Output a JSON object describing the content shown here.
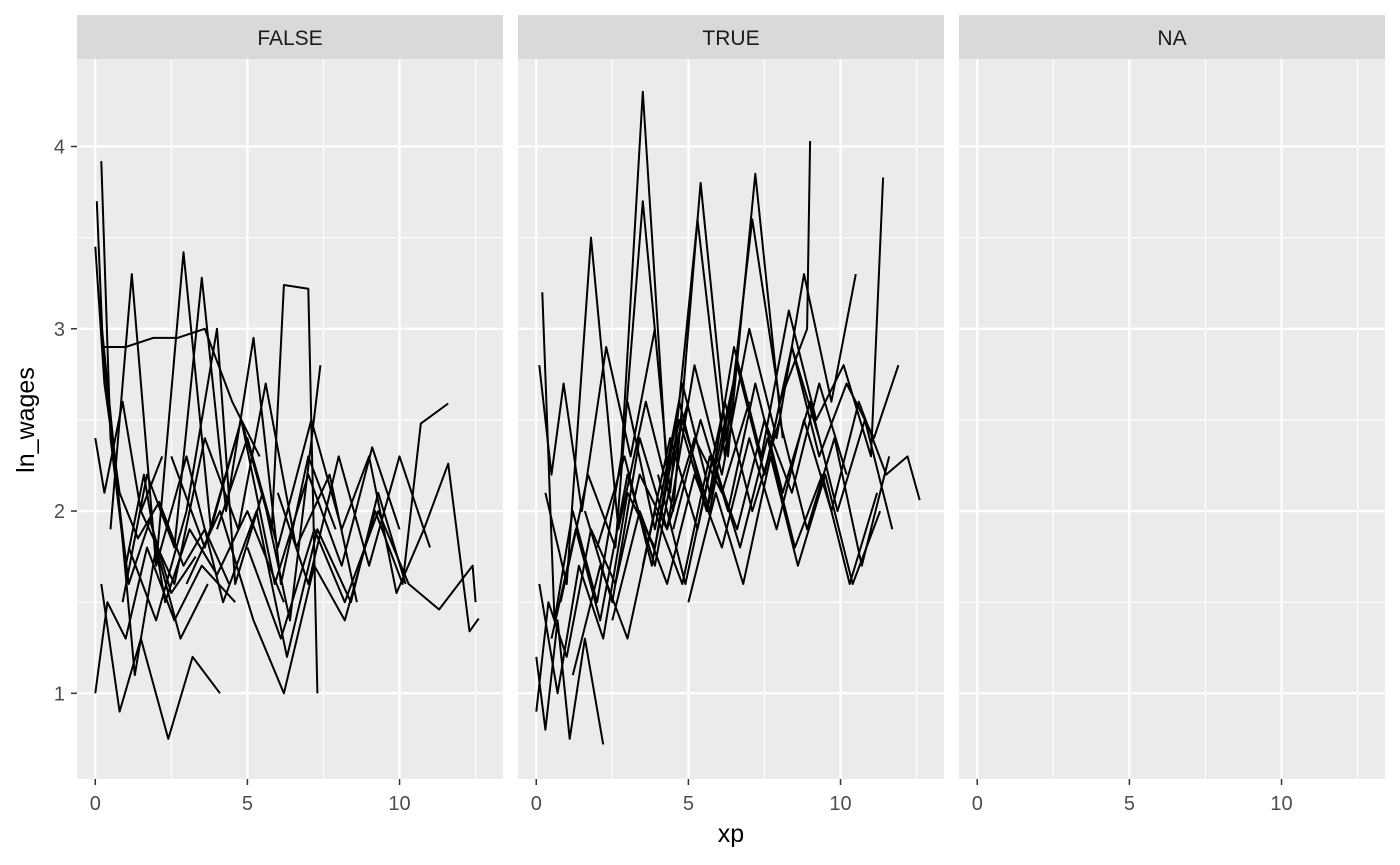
{
  "chart_data": {
    "type": "line",
    "facet_variable_values": [
      "FALSE",
      "TRUE",
      "NA"
    ],
    "xlabel": "xp",
    "ylabel": "ln_wages",
    "xlim": [
      -0.6,
      13.4
    ],
    "ylim": [
      0.53,
      4.48
    ],
    "x_ticks": [
      0,
      5,
      10
    ],
    "y_ticks": [
      1,
      2,
      3,
      4
    ],
    "x_minor_ticks": [
      2.5,
      7.5,
      12.5
    ],
    "y_minor_ticks": [
      1.5,
      2.5,
      3.5
    ],
    "grid": true,
    "line_color": "#000000",
    "panel_background": "#ebebeb",
    "strip_background": "#d9d9d9",
    "panels": [
      {
        "label": "FALSE",
        "series": [
          {
            "x": [
              0.0,
              0.3,
              0.8,
              1.4,
              2.1,
              2.9,
              3.6,
              4.4
            ],
            "y": [
              3.45,
              2.7,
              2.1,
              1.85,
              2.05,
              1.7,
              1.9,
              1.6
            ]
          },
          {
            "x": [
              0.05,
              0.25,
              0.6,
              1.1,
              1.8,
              2.5,
              3.3
            ],
            "y": [
              3.7,
              2.9,
              2.3,
              1.6,
              1.95,
              1.55,
              1.75
            ]
          },
          {
            "x": [
              0.2,
              0.5,
              1.0,
              1.6,
              2.3,
              3.1,
              4.0,
              5.0,
              6.2
            ],
            "y": [
              3.92,
              2.4,
              1.7,
              2.2,
              1.5,
              1.9,
              1.65,
              2.0,
              1.5
            ]
          },
          {
            "x": [
              0.0,
              0.4,
              1.0,
              1.7,
              2.6,
              3.5,
              4.6
            ],
            "y": [
              1.0,
              1.5,
              1.3,
              1.8,
              1.4,
              1.7,
              1.5
            ]
          },
          {
            "x": [
              0.1,
              0.7,
              1.3,
              2.0,
              2.8,
              3.7
            ],
            "y": [
              3.2,
              2.2,
              1.1,
              1.8,
              1.3,
              1.6
            ]
          },
          {
            "x": [
              0.0,
              0.3,
              0.9,
              1.5,
              2.2
            ],
            "y": [
              2.4,
              2.1,
              2.6,
              2.0,
              2.3
            ]
          },
          {
            "x": [
              0.3,
              1.0,
              1.9,
              2.7,
              3.6,
              4.5,
              5.4
            ],
            "y": [
              2.9,
              2.9,
              2.95,
              2.95,
              3.0,
              2.6,
              2.3
            ]
          },
          {
            "x": [
              0.2,
              0.8,
              1.5,
              2.4,
              3.2,
              4.1
            ],
            "y": [
              1.6,
              0.9,
              1.3,
              0.75,
              1.2,
              1.0
            ]
          },
          {
            "x": [
              0.5,
              1.2,
              2.0,
              2.9,
              3.8,
              4.8,
              5.8,
              6.2,
              7.0,
              7.3
            ],
            "y": [
              1.9,
              3.3,
              1.7,
              3.42,
              1.9,
              2.5,
              1.9,
              3.24,
              3.22,
              1.0
            ]
          },
          {
            "x": [
              0.9,
              1.7,
              2.6,
              3.5,
              4.3,
              5.2,
              6.1,
              7.0,
              7.9
            ],
            "y": [
              1.5,
              2.2,
              1.8,
              3.28,
              2.0,
              2.95,
              1.6,
              2.3,
              1.9
            ]
          },
          {
            "x": [
              1.1,
              2.0,
              3.0,
              4.0,
              4.6,
              5.5,
              6.4,
              7.4
            ],
            "y": [
              1.8,
              1.4,
              2.0,
              3.0,
              1.6,
              2.1,
              1.4,
              2.8
            ]
          },
          {
            "x": [
              1.5,
              2.6,
              3.6,
              4.7,
              5.6,
              6.6,
              7.7,
              8.6
            ],
            "y": [
              2.0,
              1.6,
              2.4,
              1.9,
              2.7,
              1.8,
              2.2,
              1.5
            ]
          },
          {
            "x": [
              2.0,
              3.0,
              4.2,
              5.3,
              6.3,
              7.3,
              8.4,
              9.3,
              10.2
            ],
            "y": [
              1.7,
              2.3,
              1.5,
              2.0,
              1.2,
              1.9,
              1.5,
              2.1,
              1.6
            ]
          },
          {
            "x": [
              2.5,
              3.6,
              4.8,
              5.9,
              7.0,
              8.1,
              9.1,
              10.0
            ],
            "y": [
              2.3,
              1.8,
              2.5,
              1.6,
              2.2,
              1.7,
              2.35,
              1.9
            ]
          },
          {
            "x": [
              3.0,
              4.1,
              5.2,
              6.2,
              7.2,
              8.2,
              9.2,
              10.1,
              10.7,
              11.6
            ],
            "y": [
              1.6,
              2.0,
              1.4,
              1.0,
              1.7,
              1.4,
              2.0,
              1.6,
              2.48,
              2.59
            ]
          },
          {
            "x": [
              4.0,
              5.0,
              6.0,
              7.1,
              8.1,
              9.0,
              9.9,
              10.8,
              11.6,
              12.3,
              12.6
            ],
            "y": [
              1.9,
              2.4,
              1.8,
              2.5,
              1.9,
              2.3,
              1.55,
              1.9,
              2.26,
              1.34,
              1.41
            ]
          },
          {
            "x": [
              5.0,
              6.1,
              7.2,
              8.2,
              9.3,
              10.3,
              11.3,
              12.4,
              12.5
            ],
            "y": [
              1.8,
              1.3,
              1.9,
              1.5,
              2.0,
              1.6,
              1.46,
              1.7,
              1.5
            ]
          },
          {
            "x": [
              6.0,
              7.0,
              8.0,
              9.0,
              10.0,
              11.0
            ],
            "y": [
              2.1,
              1.6,
              2.3,
              1.7,
              2.3,
              1.8
            ]
          }
        ]
      },
      {
        "label": "TRUE",
        "series": [
          {
            "x": [
              0.0,
              0.4,
              1.0,
              1.8,
              2.6,
              3.4,
              4.3,
              5.2,
              6.1,
              7.0
            ],
            "y": [
              0.9,
              1.5,
              1.2,
              1.9,
              1.6,
              2.2,
              1.9,
              2.4,
              2.1,
              2.6
            ]
          },
          {
            "x": [
              0.2,
              0.6,
              1.2,
              2.0,
              2.8,
              3.5,
              4.3,
              5.0
            ],
            "y": [
              3.2,
              1.4,
              2.0,
              1.5,
              2.3,
              4.3,
              2.2,
              2.6
            ]
          },
          {
            "x": [
              0.1,
              0.7,
              1.4,
              2.2,
              3.0,
              3.9,
              4.7,
              5.6,
              6.5
            ],
            "y": [
              1.6,
              1.0,
              1.7,
              1.3,
              2.1,
              1.8,
              2.5,
              2.0,
              2.6
            ]
          },
          {
            "x": [
              0.3,
              1.0,
              1.8,
              2.7,
              3.6,
              4.5,
              5.4,
              6.3,
              7.2,
              8.1
            ],
            "y": [
              2.1,
              1.6,
              3.5,
              1.9,
              2.6,
              2.0,
              3.8,
              2.3,
              3.85,
              2.4
            ]
          },
          {
            "x": [
              0.5,
              1.3,
              2.1,
              3.0,
              3.9,
              4.8,
              5.7,
              6.6,
              7.5,
              8.4,
              9.3
            ],
            "y": [
              1.3,
              1.9,
              1.4,
              2.2,
              1.7,
              2.5,
              2.0,
              2.8,
              2.2,
              2.9,
              2.4
            ]
          },
          {
            "x": [
              0.8,
              1.7,
              2.6,
              3.5,
              4.4,
              5.3,
              6.2,
              7.1,
              8.0,
              8.9,
              9.0
            ],
            "y": [
              1.5,
              2.2,
              1.8,
              3.7,
              2.1,
              3.6,
              2.3,
              3.6,
              2.6,
              3.0,
              4.03
            ]
          },
          {
            "x": [
              1.2,
              2.1,
              3.0,
              3.9,
              4.8,
              5.7,
              6.6,
              7.5,
              8.4,
              9.3,
              10.2
            ],
            "y": [
              1.1,
              1.7,
              1.3,
              2.0,
              1.6,
              2.3,
              1.9,
              2.5,
              2.1,
              2.7,
              2.2
            ]
          },
          {
            "x": [
              1.6,
              2.5,
              3.4,
              4.3,
              5.2,
              6.1,
              7.0,
              7.9,
              8.8,
              9.7,
              10.5
            ],
            "y": [
              2.0,
              1.5,
              2.4,
              1.9,
              2.8,
              2.2,
              3.0,
              2.4,
              3.3,
              2.6,
              3.3
            ]
          },
          {
            "x": [
              2.0,
              2.9,
              3.8,
              4.7,
              5.6,
              6.5,
              7.4,
              8.3,
              9.2,
              10.1,
              11.0,
              11.4
            ],
            "y": [
              1.8,
              2.3,
              1.7,
              2.6,
              2.0,
              2.9,
              2.3,
              3.1,
              2.5,
              2.8,
              2.3,
              3.83
            ]
          },
          {
            "x": [
              2.5,
              3.4,
              4.3,
              5.2,
              6.1,
              7.0,
              7.9,
              8.8,
              9.7,
              10.6,
              11.5,
              12.2,
              12.6
            ],
            "y": [
              1.4,
              2.0,
              1.6,
              2.2,
              1.8,
              2.4,
              1.9,
              2.5,
              2.0,
              2.6,
              2.2,
              2.3,
              2.06
            ]
          },
          {
            "x": [
              3.0,
              3.9,
              4.8,
              5.7,
              6.6,
              7.5,
              8.4,
              9.3,
              10.2,
              11.1,
              11.9
            ],
            "y": [
              2.6,
              1.9,
              2.7,
              2.1,
              2.8,
              2.2,
              2.9,
              2.3,
              2.7,
              2.4,
              2.8
            ]
          },
          {
            "x": [
              3.5,
              4.4,
              5.3,
              6.2,
              7.1,
              8.0,
              8.9,
              9.8,
              10.7,
              11.6
            ],
            "y": [
              1.7,
              2.4,
              1.9,
              2.6,
              2.0,
              2.5,
              1.9,
              2.4,
              1.7,
              2.3
            ]
          },
          {
            "x": [
              4.0,
              4.9,
              5.8,
              6.7,
              7.6,
              8.5,
              9.4,
              10.3,
              11.2
            ],
            "y": [
              2.2,
              1.6,
              2.3,
              1.8,
              2.4,
              1.8,
              2.2,
              1.6,
              2.1
            ]
          },
          {
            "x": [
              4.5,
              5.4,
              6.3,
              7.2,
              8.1,
              9.0,
              9.9,
              10.8,
              11.7
            ],
            "y": [
              1.9,
              2.5,
              2.0,
              2.7,
              2.1,
              2.6,
              2.0,
              2.5,
              1.9
            ]
          },
          {
            "x": [
              5.0,
              5.9,
              6.8,
              7.7,
              8.6,
              9.5,
              10.4,
              11.3
            ],
            "y": [
              1.5,
              2.1,
              1.6,
              2.3,
              1.7,
              2.2,
              1.6,
              2.0
            ]
          },
          {
            "x": [
              0.0,
              0.3,
              0.7,
              1.1,
              1.6,
              2.2
            ],
            "y": [
              1.2,
              0.8,
              1.4,
              0.75,
              1.3,
              0.72
            ]
          },
          {
            "x": [
              0.1,
              0.5,
              0.9,
              1.5,
              2.3,
              3.1,
              3.9
            ],
            "y": [
              2.8,
              2.2,
              2.7,
              2.0,
              2.9,
              2.3,
              3.0
            ]
          }
        ]
      },
      {
        "label": "NA",
        "series": []
      }
    ]
  }
}
